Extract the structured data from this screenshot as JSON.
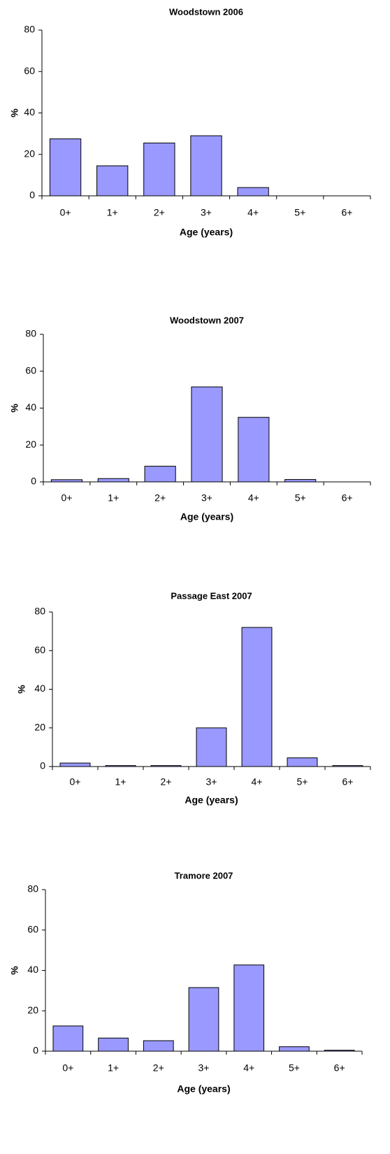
{
  "chart_data": [
    {
      "type": "bar",
      "title": "Woodstown 2006",
      "x_label": "Age (years)",
      "y_label": "%",
      "categories": [
        "0+",
        "1+",
        "2+",
        "3+",
        "4+",
        "5+",
        "6+"
      ],
      "values": [
        27.5,
        14.5,
        25.5,
        29,
        4,
        0,
        0
      ],
      "color": "#9999ff",
      "ylim": [
        0,
        80
      ],
      "yticks": [
        0,
        20,
        40,
        60,
        80
      ],
      "grid": false
    },
    {
      "type": "bar",
      "title": "Woodstown 2007",
      "x_label": "Age (years)",
      "y_label": "%",
      "categories": [
        "0+",
        "1+",
        "2+",
        "3+",
        "4+",
        "5+",
        "6+"
      ],
      "values": [
        1.2,
        1.8,
        8.5,
        51.5,
        35,
        1.3,
        0
      ],
      "color": "#9999ff",
      "ylim": [
        0,
        80
      ],
      "yticks": [
        0,
        20,
        40,
        60,
        80
      ],
      "grid": false
    },
    {
      "type": "bar",
      "title": "Passage East 2007",
      "x_label": "Age (years)",
      "y_label": "%",
      "categories": [
        "0+",
        "1+",
        "2+",
        "3+",
        "4+",
        "5+",
        "6+"
      ],
      "values": [
        1.8,
        0.5,
        0.5,
        20,
        72,
        4.5,
        0.5
      ],
      "color": "#9999ff",
      "ylim": [
        0,
        80
      ],
      "yticks": [
        0,
        20,
        40,
        60,
        80
      ],
      "grid": false
    },
    {
      "type": "bar",
      "title": "Tramore 2007",
      "x_label": "Age (years)",
      "y_label": "%",
      "categories": [
        "0+",
        "1+",
        "2+",
        "3+",
        "4+",
        "5+",
        "6+"
      ],
      "values": [
        12.5,
        6.5,
        5.2,
        31.5,
        42.7,
        2.2,
        0.5
      ],
      "color": "#9999ff",
      "ylim": [
        0,
        80
      ],
      "yticks": [
        0,
        20,
        40,
        60,
        80
      ],
      "grid": false
    }
  ]
}
